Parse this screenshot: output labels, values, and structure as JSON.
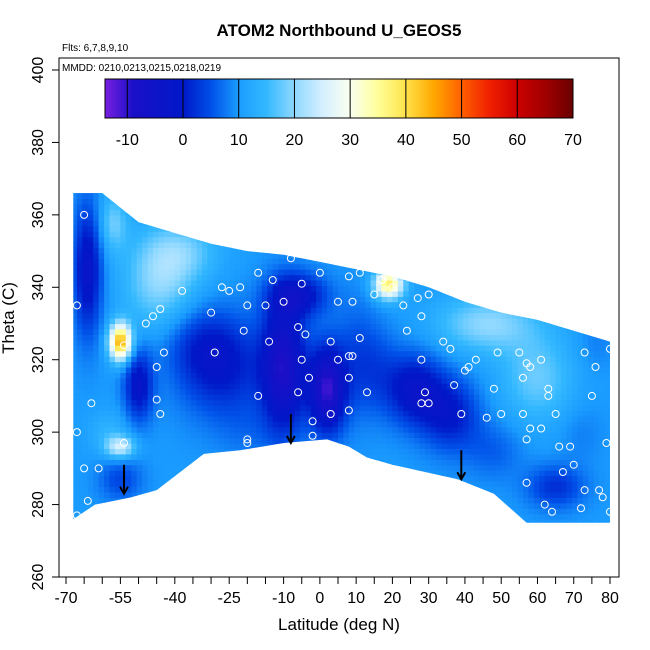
{
  "chart_data": {
    "type": "heatmap",
    "title": "ATOM2 Northbound U_GEOS5",
    "xlabel": "Latitude (deg N)",
    "ylabel": "Theta (C)",
    "flights_note": "Flts: 6,7,8,9,10",
    "dates_note": "MMDD: 0210,0213,0215,0218,0219",
    "xlim": [
      -70,
      80
    ],
    "ylim": [
      260,
      400
    ],
    "x_ticks": [
      -70,
      -55,
      -40,
      -25,
      -10,
      0,
      10,
      20,
      30,
      40,
      50,
      60,
      70,
      80
    ],
    "x_ticks_minor": [
      -65,
      -60,
      -50,
      -45,
      -35,
      -30,
      -20,
      -15,
      -5,
      5,
      15,
      25,
      35,
      45,
      55,
      65,
      75
    ],
    "y_ticks": [
      260,
      280,
      300,
      320,
      340,
      360,
      380,
      400
    ],
    "colorbar": {
      "min": -14,
      "max": 70,
      "ticks": [
        -10,
        0,
        10,
        20,
        30,
        40,
        50,
        60,
        70
      ],
      "stops": [
        {
          "v": -14,
          "c": "#7a1fe0"
        },
        {
          "v": -9,
          "c": "#1a10c8"
        },
        {
          "v": 0,
          "c": "#0018c8"
        },
        {
          "v": 5,
          "c": "#0050e8"
        },
        {
          "v": 10,
          "c": "#1a9cff"
        },
        {
          "v": 15,
          "c": "#33b8ff"
        },
        {
          "v": 20,
          "c": "#8fd8ff"
        },
        {
          "v": 25,
          "c": "#d4efff"
        },
        {
          "v": 30,
          "c": "#fafff0"
        },
        {
          "v": 35,
          "c": "#ffff99"
        },
        {
          "v": 40,
          "c": "#ffe24a"
        },
        {
          "v": 45,
          "c": "#ffa800"
        },
        {
          "v": 50,
          "c": "#ff6000"
        },
        {
          "v": 55,
          "c": "#f02000"
        },
        {
          "v": 60,
          "c": "#cc0000"
        },
        {
          "v": 65,
          "c": "#a00000"
        },
        {
          "v": 70,
          "c": "#6a0000"
        }
      ]
    },
    "background_u": 10,
    "field_blobs": [
      {
        "lat": -57,
        "theta": 358,
        "u": 18,
        "rx": 4,
        "ry": 8
      },
      {
        "lat": -64,
        "theta": 345,
        "u": -3,
        "rx": 4,
        "ry": 18
      },
      {
        "lat": -55,
        "theta": 325,
        "u": 45,
        "rx": 3,
        "ry": 5
      },
      {
        "lat": -50,
        "theta": 313,
        "u": -2,
        "rx": 4,
        "ry": 10
      },
      {
        "lat": -58,
        "theta": 300,
        "u": 14,
        "rx": 6,
        "ry": 6
      },
      {
        "lat": -55,
        "theta": 296,
        "u": 24,
        "rx": 4,
        "ry": 3
      },
      {
        "lat": -55,
        "theta": 287,
        "u": 4,
        "rx": 6,
        "ry": 6
      },
      {
        "lat": -44,
        "theta": 342,
        "u": 20,
        "rx": 10,
        "ry": 14
      },
      {
        "lat": -37,
        "theta": 350,
        "u": 16,
        "rx": 10,
        "ry": 8
      },
      {
        "lat": -34,
        "theta": 325,
        "u": 5,
        "rx": 10,
        "ry": 10
      },
      {
        "lat": -27,
        "theta": 318,
        "u": 0,
        "rx": 12,
        "ry": 14
      },
      {
        "lat": -20,
        "theta": 300,
        "u": 8,
        "rx": 8,
        "ry": 8
      },
      {
        "lat": -10,
        "theta": 318,
        "u": -8,
        "rx": 6,
        "ry": 18
      },
      {
        "lat": 2,
        "theta": 312,
        "u": -10,
        "rx": 5,
        "ry": 12
      },
      {
        "lat": -6,
        "theta": 338,
        "u": -2,
        "rx": 8,
        "ry": 6
      },
      {
        "lat": 10,
        "theta": 320,
        "u": 5,
        "rx": 6,
        "ry": 16
      },
      {
        "lat": 19,
        "theta": 341,
        "u": 38,
        "rx": 4,
        "ry": 4
      },
      {
        "lat": 16,
        "theta": 318,
        "u": 6,
        "rx": 6,
        "ry": 12
      },
      {
        "lat": 26,
        "theta": 312,
        "u": -2,
        "rx": 8,
        "ry": 10
      },
      {
        "lat": 36,
        "theta": 305,
        "u": 0,
        "rx": 8,
        "ry": 10
      },
      {
        "lat": 46,
        "theta": 330,
        "u": 20,
        "rx": 14,
        "ry": 8
      },
      {
        "lat": 60,
        "theta": 315,
        "u": 18,
        "rx": 10,
        "ry": 12
      },
      {
        "lat": 72,
        "theta": 300,
        "u": 8,
        "rx": 6,
        "ry": 8
      },
      {
        "lat": 65,
        "theta": 285,
        "u": 2,
        "rx": 8,
        "ry": 6
      },
      {
        "lat": 48,
        "theta": 295,
        "u": 6,
        "rx": 8,
        "ry": 8
      },
      {
        "lat": 76,
        "theta": 325,
        "u": 8,
        "rx": 5,
        "ry": 8
      }
    ],
    "domain_top": [
      [
        -68,
        366
      ],
      [
        -60,
        366
      ],
      [
        -50,
        358
      ],
      [
        -40,
        355
      ],
      [
        -30,
        352
      ],
      [
        -20,
        350
      ],
      [
        -10,
        349
      ],
      [
        0,
        347
      ],
      [
        10,
        345
      ],
      [
        20,
        343
      ],
      [
        30,
        340
      ],
      [
        40,
        336
      ],
      [
        50,
        333
      ],
      [
        60,
        331
      ],
      [
        70,
        328
      ],
      [
        80,
        325
      ]
    ],
    "domain_bottom": [
      [
        80,
        275
      ],
      [
        57,
        275
      ],
      [
        48,
        283
      ],
      [
        38,
        287
      ],
      [
        20,
        291
      ],
      [
        13,
        293
      ],
      [
        8,
        296
      ],
      [
        2,
        298
      ],
      [
        -10,
        297
      ],
      [
        -22,
        295
      ],
      [
        -32,
        294
      ],
      [
        -45,
        284
      ],
      [
        -52,
        282
      ],
      [
        -62,
        280
      ],
      [
        -68,
        276
      ]
    ],
    "surface_arrows": [
      {
        "lat": -54,
        "theta": 289
      },
      {
        "lat": -8,
        "theta": 303
      },
      {
        "lat": 39,
        "theta": 293
      }
    ],
    "sample_points": [
      {
        "lat": -65,
        "theta": 360
      },
      {
        "lat": -67,
        "theta": 335
      },
      {
        "lat": -67,
        "theta": 300
      },
      {
        "lat": -65,
        "theta": 290
      },
      {
        "lat": -61,
        "theta": 290
      },
      {
        "lat": -63,
        "theta": 308
      },
      {
        "lat": -64,
        "theta": 281
      },
      {
        "lat": -67,
        "theta": 277
      },
      {
        "lat": -54,
        "theta": 324
      },
      {
        "lat": -54,
        "theta": 297
      },
      {
        "lat": -48,
        "theta": 330
      },
      {
        "lat": -46,
        "theta": 332
      },
      {
        "lat": -44,
        "theta": 334
      },
      {
        "lat": -45,
        "theta": 318
      },
      {
        "lat": -44,
        "theta": 305
      },
      {
        "lat": -45,
        "theta": 309
      },
      {
        "lat": -43,
        "theta": 322
      },
      {
        "lat": -38,
        "theta": 339
      },
      {
        "lat": -30,
        "theta": 333
      },
      {
        "lat": -29,
        "theta": 322
      },
      {
        "lat": -27,
        "theta": 340
      },
      {
        "lat": -25,
        "theta": 339
      },
      {
        "lat": -22,
        "theta": 340
      },
      {
        "lat": -20,
        "theta": 335
      },
      {
        "lat": -21,
        "theta": 328
      },
      {
        "lat": -17,
        "theta": 344
      },
      {
        "lat": -15,
        "theta": 335
      },
      {
        "lat": -14,
        "theta": 325
      },
      {
        "lat": -17,
        "theta": 310
      },
      {
        "lat": -20,
        "theta": 298
      },
      {
        "lat": -20,
        "theta": 297
      },
      {
        "lat": -13,
        "theta": 342
      },
      {
        "lat": -10,
        "theta": 336
      },
      {
        "lat": -8,
        "theta": 348
      },
      {
        "lat": -5,
        "theta": 341
      },
      {
        "lat": -4,
        "theta": 327
      },
      {
        "lat": -6,
        "theta": 329
      },
      {
        "lat": -5,
        "theta": 320
      },
      {
        "lat": -6,
        "theta": 311
      },
      {
        "lat": -3,
        "theta": 315
      },
      {
        "lat": -2,
        "theta": 303
      },
      {
        "lat": -2,
        "theta": 299
      },
      {
        "lat": 0,
        "theta": 344
      },
      {
        "lat": 3,
        "theta": 305
      },
      {
        "lat": 3,
        "theta": 325
      },
      {
        "lat": 5,
        "theta": 320
      },
      {
        "lat": 5,
        "theta": 336
      },
      {
        "lat": 8,
        "theta": 343
      },
      {
        "lat": 9,
        "theta": 336
      },
      {
        "lat": 8,
        "theta": 321
      },
      {
        "lat": 9,
        "theta": 321
      },
      {
        "lat": 8,
        "theta": 315
      },
      {
        "lat": 8,
        "theta": 306
      },
      {
        "lat": 11,
        "theta": 344
      },
      {
        "lat": 11,
        "theta": 326
      },
      {
        "lat": 13,
        "theta": 311
      },
      {
        "lat": 15,
        "theta": 338
      },
      {
        "lat": 17,
        "theta": 342
      },
      {
        "lat": 20,
        "theta": 340
      },
      {
        "lat": 23,
        "theta": 335
      },
      {
        "lat": 24,
        "theta": 328
      },
      {
        "lat": 27,
        "theta": 337
      },
      {
        "lat": 28,
        "theta": 332
      },
      {
        "lat": 30,
        "theta": 338
      },
      {
        "lat": 28,
        "theta": 320
      },
      {
        "lat": 29,
        "theta": 311
      },
      {
        "lat": 30,
        "theta": 308
      },
      {
        "lat": 28,
        "theta": 308
      },
      {
        "lat": 34,
        "theta": 325
      },
      {
        "lat": 36,
        "theta": 323
      },
      {
        "lat": 37,
        "theta": 313
      },
      {
        "lat": 40,
        "theta": 317
      },
      {
        "lat": 41,
        "theta": 318
      },
      {
        "lat": 43,
        "theta": 320
      },
      {
        "lat": 39,
        "theta": 305
      },
      {
        "lat": 46,
        "theta": 304
      },
      {
        "lat": 48,
        "theta": 312
      },
      {
        "lat": 49,
        "theta": 322
      },
      {
        "lat": 50,
        "theta": 305
      },
      {
        "lat": 55,
        "theta": 322
      },
      {
        "lat": 57,
        "theta": 319
      },
      {
        "lat": 58,
        "theta": 318
      },
      {
        "lat": 56,
        "theta": 315
      },
      {
        "lat": 56,
        "theta": 305
      },
      {
        "lat": 57,
        "theta": 298
      },
      {
        "lat": 58,
        "theta": 301
      },
      {
        "lat": 61,
        "theta": 320
      },
      {
        "lat": 63,
        "theta": 312
      },
      {
        "lat": 63,
        "theta": 310
      },
      {
        "lat": 65,
        "theta": 305
      },
      {
        "lat": 66,
        "theta": 296
      },
      {
        "lat": 64,
        "theta": 278
      },
      {
        "lat": 67,
        "theta": 289
      },
      {
        "lat": 69,
        "theta": 296
      },
      {
        "lat": 70,
        "theta": 291
      },
      {
        "lat": 72,
        "theta": 279
      },
      {
        "lat": 73,
        "theta": 284
      },
      {
        "lat": 75,
        "theta": 310
      },
      {
        "lat": 76,
        "theta": 318
      },
      {
        "lat": 73,
        "theta": 322
      },
      {
        "lat": 77,
        "theta": 284
      },
      {
        "lat": 78,
        "theta": 282
      },
      {
        "lat": 79,
        "theta": 297
      },
      {
        "lat": 80,
        "theta": 323
      },
      {
        "lat": 80,
        "theta": 278
      },
      {
        "lat": 81,
        "theta": 277
      },
      {
        "lat": 57,
        "theta": 286
      },
      {
        "lat": 61,
        "theta": 301
      },
      {
        "lat": 62,
        "theta": 280
      }
    ]
  }
}
